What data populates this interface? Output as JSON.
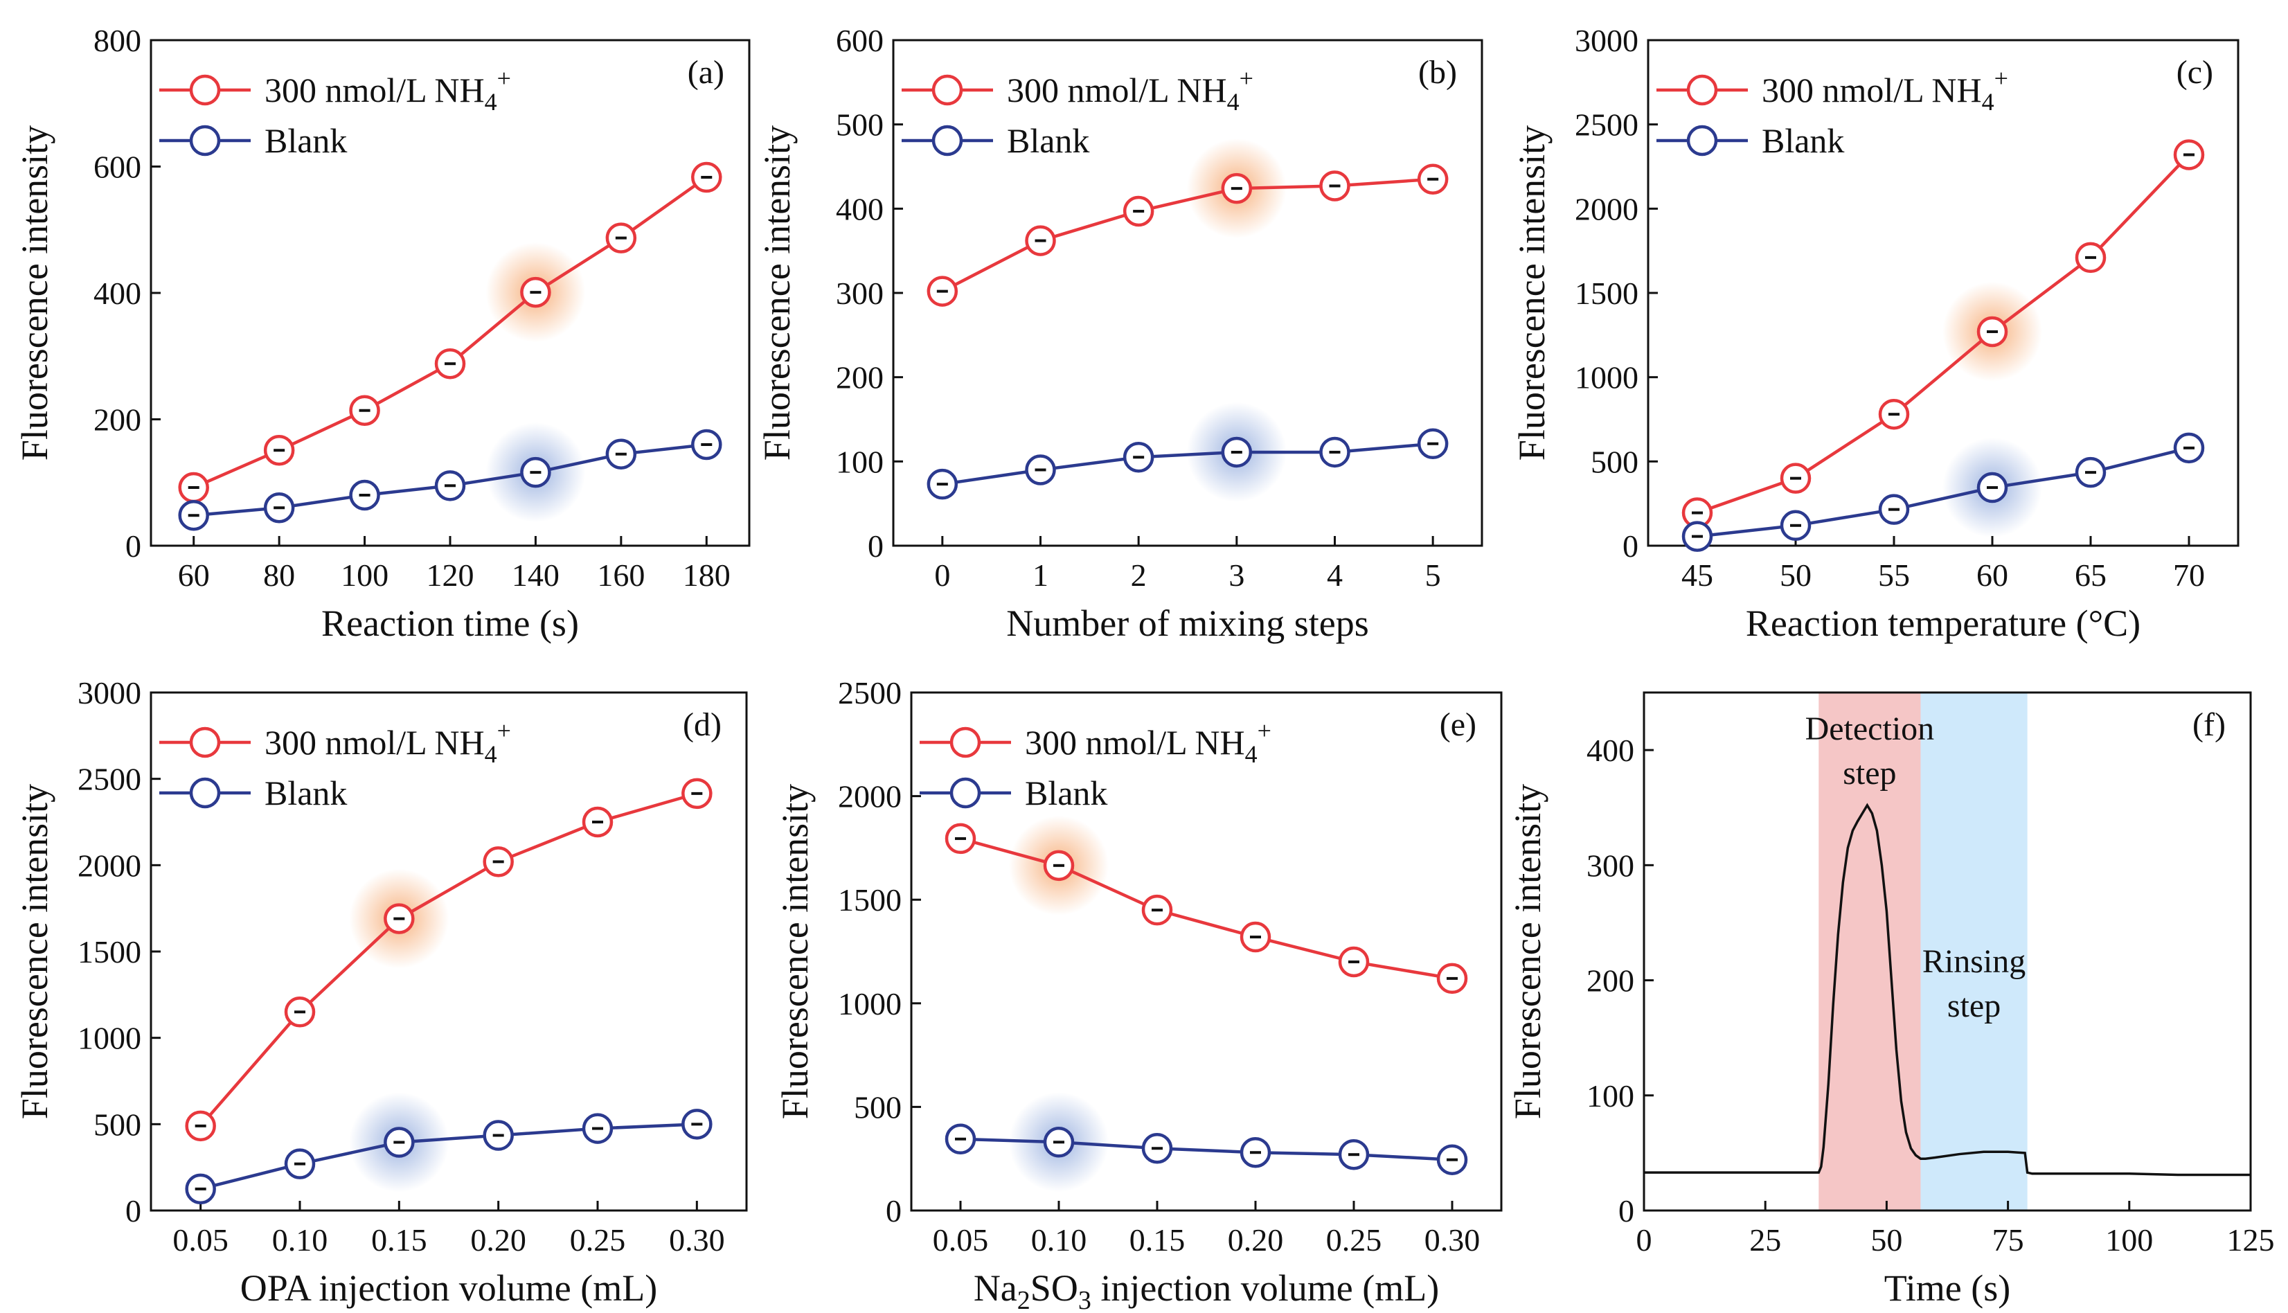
{
  "colors": {
    "sample": "#e8383d",
    "blank": "#2b3a8f",
    "detection_band": "#f5c6c6",
    "rinsing_band": "#cfe9fb",
    "glow_sample": "#f6a66b",
    "glow_blank": "#8fa9dc"
  },
  "legend": {
    "sample_label": "300 nmol/L NH",
    "sample_sub": "4",
    "sample_sup": "+",
    "blank_label": "Blank"
  },
  "chart_data": [
    {
      "id": "a",
      "type": "line",
      "tag": "(a)",
      "xlabel": "Reaction time (s)",
      "ylabel": "Fluorescence intensity",
      "x": [
        60,
        80,
        100,
        120,
        140,
        160,
        180
      ],
      "x_tick_labels": [
        "60",
        "80",
        "100",
        "120",
        "140",
        "160",
        "180"
      ],
      "xlim": [
        50,
        190
      ],
      "ylim": [
        0,
        800
      ],
      "y_ticks": [
        0,
        200,
        400,
        600,
        800
      ],
      "y_tick_labels": [
        "0",
        "200",
        "400",
        "600",
        "800"
      ],
      "highlight_index": 4,
      "series": [
        {
          "name": "300 nmol/L NH4+",
          "key": "sample",
          "values": [
            92,
            151,
            214,
            288,
            401,
            487,
            583
          ]
        },
        {
          "name": "Blank",
          "key": "blank",
          "values": [
            48,
            60,
            80,
            95,
            116,
            145,
            160
          ]
        }
      ]
    },
    {
      "id": "b",
      "type": "line",
      "tag": "(b)",
      "xlabel": "Number of mixing steps",
      "ylabel": "Fluorescence intensity",
      "x": [
        0,
        1,
        2,
        3,
        4,
        5
      ],
      "x_tick_labels": [
        "0",
        "1",
        "2",
        "3",
        "4",
        "5"
      ],
      "xlim": [
        -0.5,
        5.5
      ],
      "ylim": [
        0,
        600
      ],
      "y_ticks": [
        0,
        100,
        200,
        300,
        400,
        500,
        600
      ],
      "y_tick_labels": [
        "0",
        "100",
        "200",
        "300",
        "400",
        "500",
        "600"
      ],
      "highlight_index": 3,
      "series": [
        {
          "name": "300 nmol/L NH4+",
          "key": "sample",
          "values": [
            302,
            362,
            397,
            424,
            427,
            435
          ]
        },
        {
          "name": "Blank",
          "key": "blank",
          "values": [
            73,
            90,
            105,
            111,
            111,
            121
          ]
        }
      ]
    },
    {
      "id": "c",
      "type": "line",
      "tag": "(c)",
      "xlabel": "Reaction temperature (°C)",
      "ylabel": "Fluorescence intensity",
      "x": [
        45,
        50,
        55,
        60,
        65,
        70
      ],
      "x_tick_labels": [
        "45",
        "50",
        "55",
        "60",
        "65",
        "70"
      ],
      "xlim": [
        42.5,
        72.5
      ],
      "ylim": [
        0,
        3000
      ],
      "y_ticks": [
        0,
        500,
        1000,
        1500,
        2000,
        2500,
        3000
      ],
      "y_tick_labels": [
        "0",
        "500",
        "1000",
        "1500",
        "2000",
        "2500",
        "3000"
      ],
      "highlight_index": 3,
      "series": [
        {
          "name": "300 nmol/L NH4+",
          "key": "sample",
          "values": [
            195,
            400,
            780,
            1270,
            1710,
            2320
          ]
        },
        {
          "name": "Blank",
          "key": "blank",
          "values": [
            55,
            120,
            215,
            345,
            435,
            580
          ]
        }
      ]
    },
    {
      "id": "d",
      "type": "line",
      "tag": "(d)",
      "xlabel": "OPA injection volume (mL)",
      "ylabel": "Fluorescence intensity",
      "x": [
        0.05,
        0.1,
        0.15,
        0.2,
        0.25,
        0.3
      ],
      "x_tick_labels": [
        "0.05",
        "0.10",
        "0.15",
        "0.20",
        "0.25",
        "0.30"
      ],
      "xlim": [
        0.025,
        0.325
      ],
      "ylim": [
        0,
        3000
      ],
      "y_ticks": [
        0,
        500,
        1000,
        1500,
        2000,
        2500,
        3000
      ],
      "y_tick_labels": [
        "0",
        "500",
        "1000",
        "1500",
        "2000",
        "2500",
        "3000"
      ],
      "highlight_index": 2,
      "series": [
        {
          "name": "300 nmol/L NH4+",
          "key": "sample",
          "values": [
            490,
            1150,
            1690,
            2020,
            2250,
            2415
          ]
        },
        {
          "name": "Blank",
          "key": "blank",
          "values": [
            125,
            270,
            395,
            435,
            475,
            500
          ]
        }
      ]
    },
    {
      "id": "e",
      "type": "line",
      "tag": "(e)",
      "xlabel": "Na",
      "xlabel_sub": "2",
      "xlabel_mid": "SO",
      "xlabel_sub2": "3",
      "xlabel_rest": " injection volume (mL)",
      "ylabel": "Fluorescence intensity",
      "x": [
        0.05,
        0.1,
        0.15,
        0.2,
        0.25,
        0.3
      ],
      "x_tick_labels": [
        "0.05",
        "0.10",
        "0.15",
        "0.20",
        "0.25",
        "0.30"
      ],
      "xlim": [
        0.025,
        0.325
      ],
      "ylim": [
        0,
        2500
      ],
      "y_ticks": [
        0,
        500,
        1000,
        1500,
        2000,
        2500
      ],
      "y_tick_labels": [
        "0",
        "500",
        "1000",
        "1500",
        "2000",
        "2500"
      ],
      "highlight_index": 1,
      "series": [
        {
          "name": "300 nmol/L NH4+",
          "key": "sample",
          "values": [
            1795,
            1665,
            1450,
            1320,
            1200,
            1120
          ]
        },
        {
          "name": "Blank",
          "key": "blank",
          "values": [
            345,
            330,
            300,
            280,
            270,
            245
          ]
        }
      ]
    },
    {
      "id": "f",
      "type": "line",
      "tag": "(f)",
      "xlabel": "Time (s)",
      "ylabel": "Fluorescence intensity",
      "xlim": [
        0,
        125
      ],
      "x_ticks": [
        0,
        25,
        50,
        75,
        100,
        125
      ],
      "x_tick_labels": [
        "0",
        "25",
        "50",
        "75",
        "100",
        "125"
      ],
      "ylim": [
        0,
        450
      ],
      "y_ticks": [
        0,
        100,
        200,
        300,
        400
      ],
      "y_tick_labels": [
        "0",
        "100",
        "200",
        "300",
        "400"
      ],
      "detection_band": [
        36,
        57
      ],
      "rinsing_band": [
        57,
        79
      ],
      "detection_label": [
        "Detection",
        "step"
      ],
      "rinsing_label": [
        "Rinsing",
        "step"
      ],
      "trace_x": [
        0,
        36,
        36.5,
        37,
        38,
        39,
        40,
        41,
        42,
        43,
        44,
        45,
        46,
        47,
        48,
        49,
        50,
        51,
        52,
        53,
        54,
        55,
        56,
        57,
        58,
        60,
        65,
        70,
        75,
        78.5,
        79,
        80,
        90,
        100,
        110,
        125
      ],
      "trace_y": [
        33,
        33,
        38,
        55,
        110,
        180,
        240,
        285,
        315,
        330,
        338,
        345,
        352,
        345,
        330,
        300,
        260,
        200,
        140,
        95,
        68,
        54,
        48,
        45,
        45,
        46,
        49,
        51,
        51,
        50,
        33,
        32,
        32,
        32,
        31,
        31
      ]
    }
  ]
}
